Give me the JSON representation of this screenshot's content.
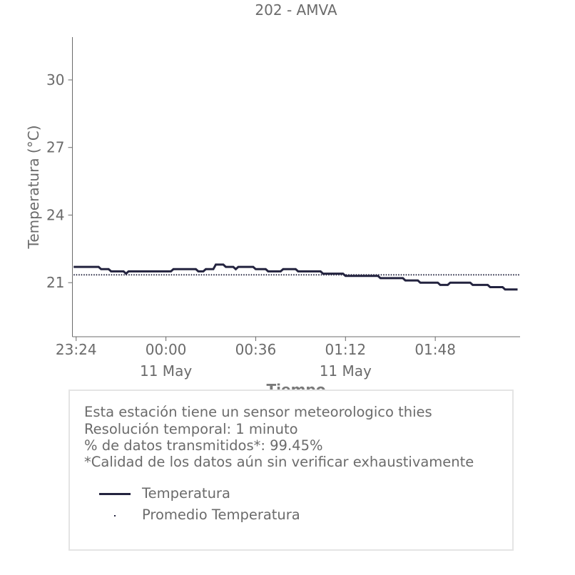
{
  "colors": {
    "series": "#23233f",
    "text": "#6b6b6b",
    "axis": "#6b6b6b",
    "box_border": "#e4e4e4"
  },
  "chart_data": {
    "type": "line",
    "title": "202 - AMVA",
    "xlabel": "Tiempo",
    "ylabel": "Temperatura (°C)",
    "x_range_minutes": [
      -1.5,
      178
    ],
    "ylim": [
      18.6,
      31.9
    ],
    "yticks": [
      21,
      24,
      27,
      30
    ],
    "xtick_minutes": [
      0,
      36,
      72,
      108,
      144
    ],
    "xtick_labels": [
      "23:24",
      "00:00",
      "00:36",
      "01:12",
      "01:48"
    ],
    "xtick_sublabels": [
      "",
      "11 May",
      "",
      "11 May",
      ""
    ],
    "grid": false,
    "series": [
      {
        "name": "Temperatura",
        "style": "solid",
        "points": [
          [
            -1,
            21.7
          ],
          [
            9,
            21.7
          ],
          [
            10,
            21.6
          ],
          [
            13,
            21.6
          ],
          [
            14,
            21.5
          ],
          [
            19,
            21.5
          ],
          [
            20,
            21.4
          ],
          [
            21,
            21.5
          ],
          [
            38,
            21.5
          ],
          [
            39,
            21.6
          ],
          [
            48,
            21.6
          ],
          [
            49,
            21.5
          ],
          [
            51,
            21.5
          ],
          [
            52,
            21.6
          ],
          [
            55,
            21.6
          ],
          [
            56,
            21.8
          ],
          [
            59,
            21.8
          ],
          [
            60,
            21.7
          ],
          [
            63,
            21.7
          ],
          [
            64,
            21.6
          ],
          [
            65,
            21.7
          ],
          [
            71,
            21.7
          ],
          [
            72,
            21.6
          ],
          [
            76,
            21.6
          ],
          [
            77,
            21.5
          ],
          [
            82,
            21.5
          ],
          [
            83,
            21.6
          ],
          [
            88,
            21.6
          ],
          [
            89,
            21.5
          ],
          [
            98,
            21.5
          ],
          [
            99,
            21.4
          ],
          [
            107,
            21.4
          ],
          [
            108,
            21.3
          ],
          [
            121,
            21.3
          ],
          [
            122,
            21.2
          ],
          [
            131,
            21.2
          ],
          [
            132,
            21.1
          ],
          [
            137,
            21.1
          ],
          [
            138,
            21.0
          ],
          [
            145,
            21.0
          ],
          [
            146,
            20.9
          ],
          [
            149,
            20.9
          ],
          [
            150,
            21.0
          ],
          [
            158,
            21.0
          ],
          [
            159,
            20.9
          ],
          [
            165,
            20.9
          ],
          [
            166,
            20.8
          ],
          [
            171,
            20.8
          ],
          [
            172,
            20.7
          ],
          [
            177,
            20.7
          ]
        ]
      },
      {
        "name": "Promedio Temperatura",
        "style": "dotted",
        "points": [
          [
            -1,
            21.35
          ],
          [
            178,
            21.35
          ]
        ]
      }
    ]
  },
  "info": {
    "line1": "Esta estación tiene un sensor meteorologico thies",
    "line2": "Resolución temporal: 1 minuto",
    "line3": "% de datos transmitidos*: 99.45%",
    "line4": "*Calidad de los datos aún sin verificar exhaustivamente"
  },
  "legend": {
    "item1": "Temperatura",
    "item2": "Promedio Temperatura"
  }
}
